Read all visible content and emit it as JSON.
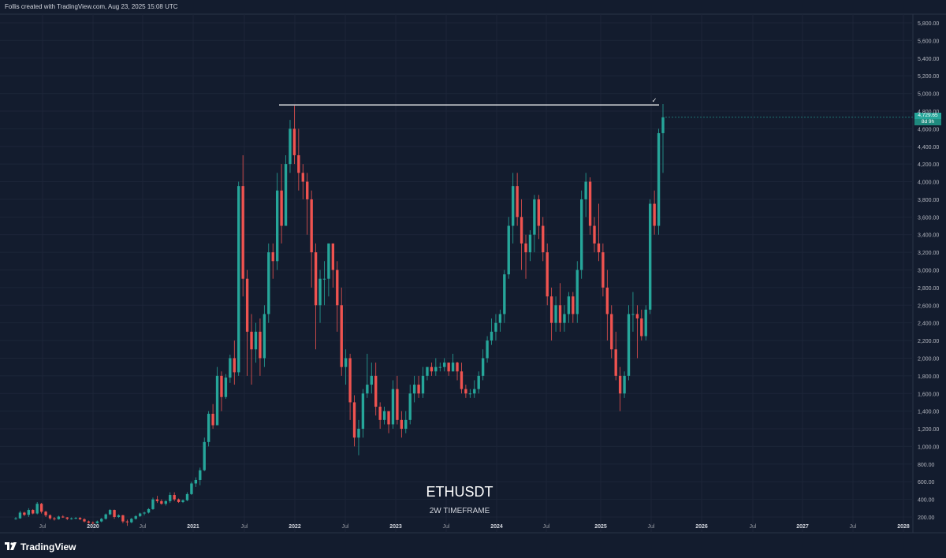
{
  "header": {
    "attribution": "Follis created with TradingView.com, Aug 23, 2025 15:08 UTC"
  },
  "footer": {
    "brand": "TradingView"
  },
  "chart_data": {
    "type": "candlestick",
    "title": "ETHUSDT",
    "subtitle": "2W TIMEFRAME",
    "y_axis": {
      "ticks": [
        "200.00",
        "400.00",
        "600.00",
        "800.00",
        "1,000.00",
        "1,200.00",
        "1,400.00",
        "1,600.00",
        "1,800.00",
        "2,000.00",
        "2,200.00",
        "2,400.00",
        "2,600.00",
        "2,800.00",
        "3,000.00",
        "3,200.00",
        "3,400.00",
        "3,600.00",
        "3,800.00",
        "4,000.00",
        "4,200.00",
        "4,400.00",
        "4,600.00",
        "4,800.00",
        "5,000.00",
        "5,200.00",
        "5,400.00",
        "5,600.00",
        "5,800.00"
      ],
      "range": [
        130,
        5900
      ]
    },
    "x_axis": {
      "ticks": [
        "Jul",
        "2020",
        "Jul",
        "2021",
        "Jul",
        "2022",
        "Jul",
        "2023",
        "Jul",
        "2024",
        "Jul",
        "2025",
        "Jul",
        "2026",
        "Jul",
        "2027",
        "Jul",
        "2028"
      ]
    },
    "current_price": {
      "label": "4,729.65",
      "countdown": "8d 9h",
      "value": 4729.65
    },
    "resistance_line": {
      "value": 4870
    },
    "colors": {
      "up": "#26a69a",
      "down": "#ef5350",
      "background": "#131c2e",
      "grid": "#1c2538",
      "line": "#ffffff"
    },
    "candles": [
      [
        180,
        200,
        170,
        185
      ],
      [
        185,
        270,
        180,
        250
      ],
      [
        250,
        260,
        210,
        225
      ],
      [
        225,
        300,
        200,
        280
      ],
      [
        280,
        290,
        230,
        240
      ],
      [
        240,
        370,
        230,
        350
      ],
      [
        350,
        360,
        240,
        260
      ],
      [
        260,
        270,
        200,
        220
      ],
      [
        220,
        230,
        170,
        185
      ],
      [
        185,
        200,
        160,
        175
      ],
      [
        175,
        215,
        170,
        205
      ],
      [
        205,
        220,
        190,
        195
      ],
      [
        195,
        200,
        165,
        180
      ],
      [
        180,
        195,
        170,
        185
      ],
      [
        185,
        200,
        175,
        190
      ],
      [
        190,
        200,
        165,
        175
      ],
      [
        175,
        185,
        140,
        150
      ],
      [
        150,
        160,
        125,
        135
      ],
      [
        135,
        150,
        120,
        130
      ],
      [
        130,
        160,
        125,
        150
      ],
      [
        150,
        190,
        140,
        180
      ],
      [
        180,
        240,
        170,
        230
      ],
      [
        230,
        290,
        220,
        280
      ],
      [
        280,
        285,
        180,
        200
      ],
      [
        200,
        230,
        190,
        220
      ],
      [
        220,
        225,
        130,
        150
      ],
      [
        150,
        170,
        100,
        140
      ],
      [
        140,
        190,
        130,
        180
      ],
      [
        180,
        220,
        170,
        210
      ],
      [
        210,
        250,
        200,
        240
      ],
      [
        240,
        260,
        220,
        250
      ],
      [
        250,
        300,
        240,
        290
      ],
      [
        290,
        420,
        280,
        400
      ],
      [
        400,
        440,
        360,
        380
      ],
      [
        380,
        400,
        340,
        350
      ],
      [
        350,
        390,
        330,
        380
      ],
      [
        380,
        480,
        360,
        450
      ],
      [
        450,
        480,
        380,
        400
      ],
      [
        400,
        410,
        360,
        370
      ],
      [
        370,
        400,
        360,
        390
      ],
      [
        390,
        480,
        380,
        460
      ],
      [
        460,
        600,
        450,
        580
      ],
      [
        580,
        650,
        540,
        620
      ],
      [
        620,
        760,
        560,
        730
      ],
      [
        730,
        1100,
        720,
        1050
      ],
      [
        1050,
        1400,
        1000,
        1370
      ],
      [
        1370,
        1480,
        1200,
        1240
      ],
      [
        1240,
        1900,
        1240,
        1800
      ],
      [
        1800,
        1850,
        1400,
        1560
      ],
      [
        1560,
        1820,
        1540,
        1780
      ],
      [
        1780,
        2040,
        1720,
        2000
      ],
      [
        2000,
        2200,
        1700,
        1840
      ],
      [
        1840,
        4000,
        1800,
        3950
      ],
      [
        3950,
        4300,
        2700,
        2900
      ],
      [
        2900,
        3000,
        1800,
        2300
      ],
      [
        2300,
        2500,
        1700,
        2100
      ],
      [
        2100,
        2400,
        1950,
        2300
      ],
      [
        2300,
        2450,
        1800,
        2000
      ],
      [
        2000,
        2600,
        1900,
        2500
      ],
      [
        2500,
        3300,
        2400,
        3200
      ],
      [
        3200,
        3300,
        2900,
        3100
      ],
      [
        3100,
        4100,
        3000,
        3900
      ],
      [
        3900,
        4200,
        3300,
        3500
      ],
      [
        3500,
        4300,
        3500,
        4200
      ],
      [
        4200,
        4700,
        4100,
        4600
      ],
      [
        4600,
        4860,
        4200,
        4300
      ],
      [
        4300,
        4600,
        3900,
        4100
      ],
      [
        4100,
        4200,
        3800,
        4000
      ],
      [
        4000,
        4100,
        3400,
        3800
      ],
      [
        3800,
        3900,
        2800,
        3200
      ],
      [
        3200,
        3300,
        2100,
        2600
      ],
      [
        2600,
        3000,
        2400,
        2900
      ],
      [
        2900,
        3100,
        2600,
        2900
      ],
      [
        2900,
        3300,
        2700,
        3300
      ],
      [
        3300,
        3300,
        2800,
        3000
      ],
      [
        3000,
        3100,
        2300,
        2600
      ],
      [
        2600,
        2800,
        1800,
        1900
      ],
      [
        1900,
        2100,
        1700,
        2000
      ],
      [
        2000,
        2050,
        1300,
        1500
      ],
      [
        1500,
        1580,
        1000,
        1100
      ],
      [
        1100,
        1300,
        900,
        1200
      ],
      [
        1200,
        1650,
        1100,
        1600
      ],
      [
        1600,
        2050,
        1550,
        1700
      ],
      [
        1700,
        1950,
        1600,
        1800
      ],
      [
        1800,
        1950,
        1350,
        1450
      ],
      [
        1450,
        1500,
        1200,
        1300
      ],
      [
        1300,
        1450,
        1250,
        1400
      ],
      [
        1400,
        1350,
        1150,
        1250
      ],
      [
        1250,
        1750,
        1200,
        1650
      ],
      [
        1650,
        1800,
        1250,
        1300
      ],
      [
        1300,
        1400,
        1100,
        1200
      ],
      [
        1200,
        1400,
        1150,
        1300
      ],
      [
        1300,
        1700,
        1250,
        1600
      ],
      [
        1600,
        1800,
        1500,
        1700
      ],
      [
        1700,
        1800,
        1550,
        1600
      ],
      [
        1600,
        1900,
        1550,
        1800
      ],
      [
        1800,
        1900,
        1750,
        1900
      ],
      [
        1900,
        1950,
        1800,
        1850
      ],
      [
        1850,
        2000,
        1800,
        1900
      ],
      [
        1900,
        1950,
        1850,
        1900
      ],
      [
        1900,
        2000,
        1850,
        1950
      ],
      [
        1950,
        1950,
        1800,
        1850
      ],
      [
        1850,
        2050,
        1850,
        1950
      ],
      [
        1950,
        1960,
        1750,
        1850
      ],
      [
        1850,
        1950,
        1600,
        1650
      ],
      [
        1650,
        1700,
        1550,
        1600
      ],
      [
        1600,
        1650,
        1550,
        1600
      ],
      [
        1600,
        1750,
        1550,
        1650
      ],
      [
        1650,
        1850,
        1600,
        1800
      ],
      [
        1800,
        2100,
        1750,
        2000
      ],
      [
        2000,
        2250,
        1950,
        2200
      ],
      [
        2200,
        2450,
        2150,
        2300
      ],
      [
        2300,
        2500,
        2200,
        2400
      ],
      [
        2400,
        2550,
        2300,
        2500
      ],
      [
        2500,
        3000,
        2400,
        2950
      ],
      [
        2950,
        3600,
        2900,
        3500
      ],
      [
        3500,
        4100,
        3300,
        3950
      ],
      [
        3950,
        4100,
        3500,
        3600
      ],
      [
        3600,
        3800,
        3000,
        3300
      ],
      [
        3300,
        3400,
        2900,
        3200
      ],
      [
        3200,
        3450,
        3100,
        3400
      ],
      [
        3400,
        3850,
        3200,
        3800
      ],
      [
        3800,
        3850,
        3350,
        3500
      ],
      [
        3500,
        3600,
        3100,
        3200
      ],
      [
        3200,
        3300,
        2600,
        2700
      ],
      [
        2700,
        2800,
        2200,
        2400
      ],
      [
        2400,
        2700,
        2300,
        2600
      ],
      [
        2600,
        2850,
        2300,
        2400
      ],
      [
        2400,
        2600,
        2300,
        2500
      ],
      [
        2500,
        2750,
        2400,
        2700
      ],
      [
        2700,
        2750,
        2400,
        2500
      ],
      [
        2500,
        3100,
        2400,
        3000
      ],
      [
        3000,
        3900,
        2900,
        3800
      ],
      [
        3800,
        4100,
        3600,
        4000
      ],
      [
        4000,
        4050,
        3400,
        3500
      ],
      [
        3500,
        3600,
        3200,
        3300
      ],
      [
        3300,
        3750,
        3100,
        3200
      ],
      [
        3200,
        3300,
        2700,
        2800
      ],
      [
        2800,
        3000,
        2200,
        2500
      ],
      [
        2500,
        2600,
        2000,
        2100
      ],
      [
        2100,
        2300,
        1750,
        1800
      ],
      [
        1800,
        1900,
        1400,
        1600
      ],
      [
        1600,
        1850,
        1550,
        1800
      ],
      [
        1800,
        2600,
        1750,
        2500
      ],
      [
        2500,
        2750,
        2300,
        2500
      ],
      [
        2500,
        2600,
        2000,
        2450
      ],
      [
        2450,
        2550,
        2200,
        2250
      ],
      [
        2250,
        2600,
        2200,
        2550
      ],
      [
        2550,
        3800,
        2500,
        3750
      ],
      [
        3750,
        3900,
        3400,
        3500
      ],
      [
        3500,
        4600,
        3400,
        4550
      ],
      [
        4550,
        4880,
        4100,
        4730
      ]
    ]
  }
}
